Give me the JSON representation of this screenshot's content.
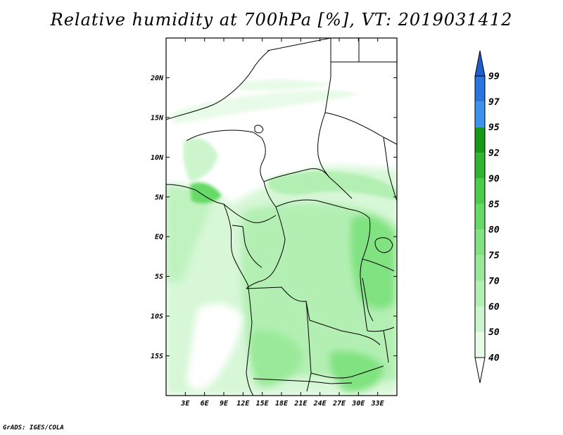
{
  "title": "Relative humidity at 700hPa [%], VT: 2019031412",
  "credit": "GrADS: IGES/COLA",
  "map": {
    "lat_range": [
      -20,
      25
    ],
    "lon_range": [
      0,
      36
    ],
    "lat_ticks": [
      "20N",
      "15N",
      "10N",
      "5N",
      "EQ",
      "5S",
      "10S",
      "15S"
    ],
    "lon_ticks": [
      "3E",
      "6E",
      "9E",
      "12E",
      "15E",
      "18E",
      "21E",
      "24E",
      "27E",
      "30E",
      "33E"
    ]
  },
  "colorbar": {
    "levels": [
      "40",
      "50",
      "60",
      "70",
      "75",
      "80",
      "85",
      "90",
      "92",
      "95",
      "97",
      "99"
    ],
    "colors": [
      "#ffffff",
      "#e8fbe8",
      "#cdf5cd",
      "#b3efb3",
      "#9ae99a",
      "#80e280",
      "#66d966",
      "#4ccc4c",
      "#2fb52f",
      "#169a16",
      "#3d92ee",
      "#2a74df",
      "#1e5fcf"
    ]
  }
}
